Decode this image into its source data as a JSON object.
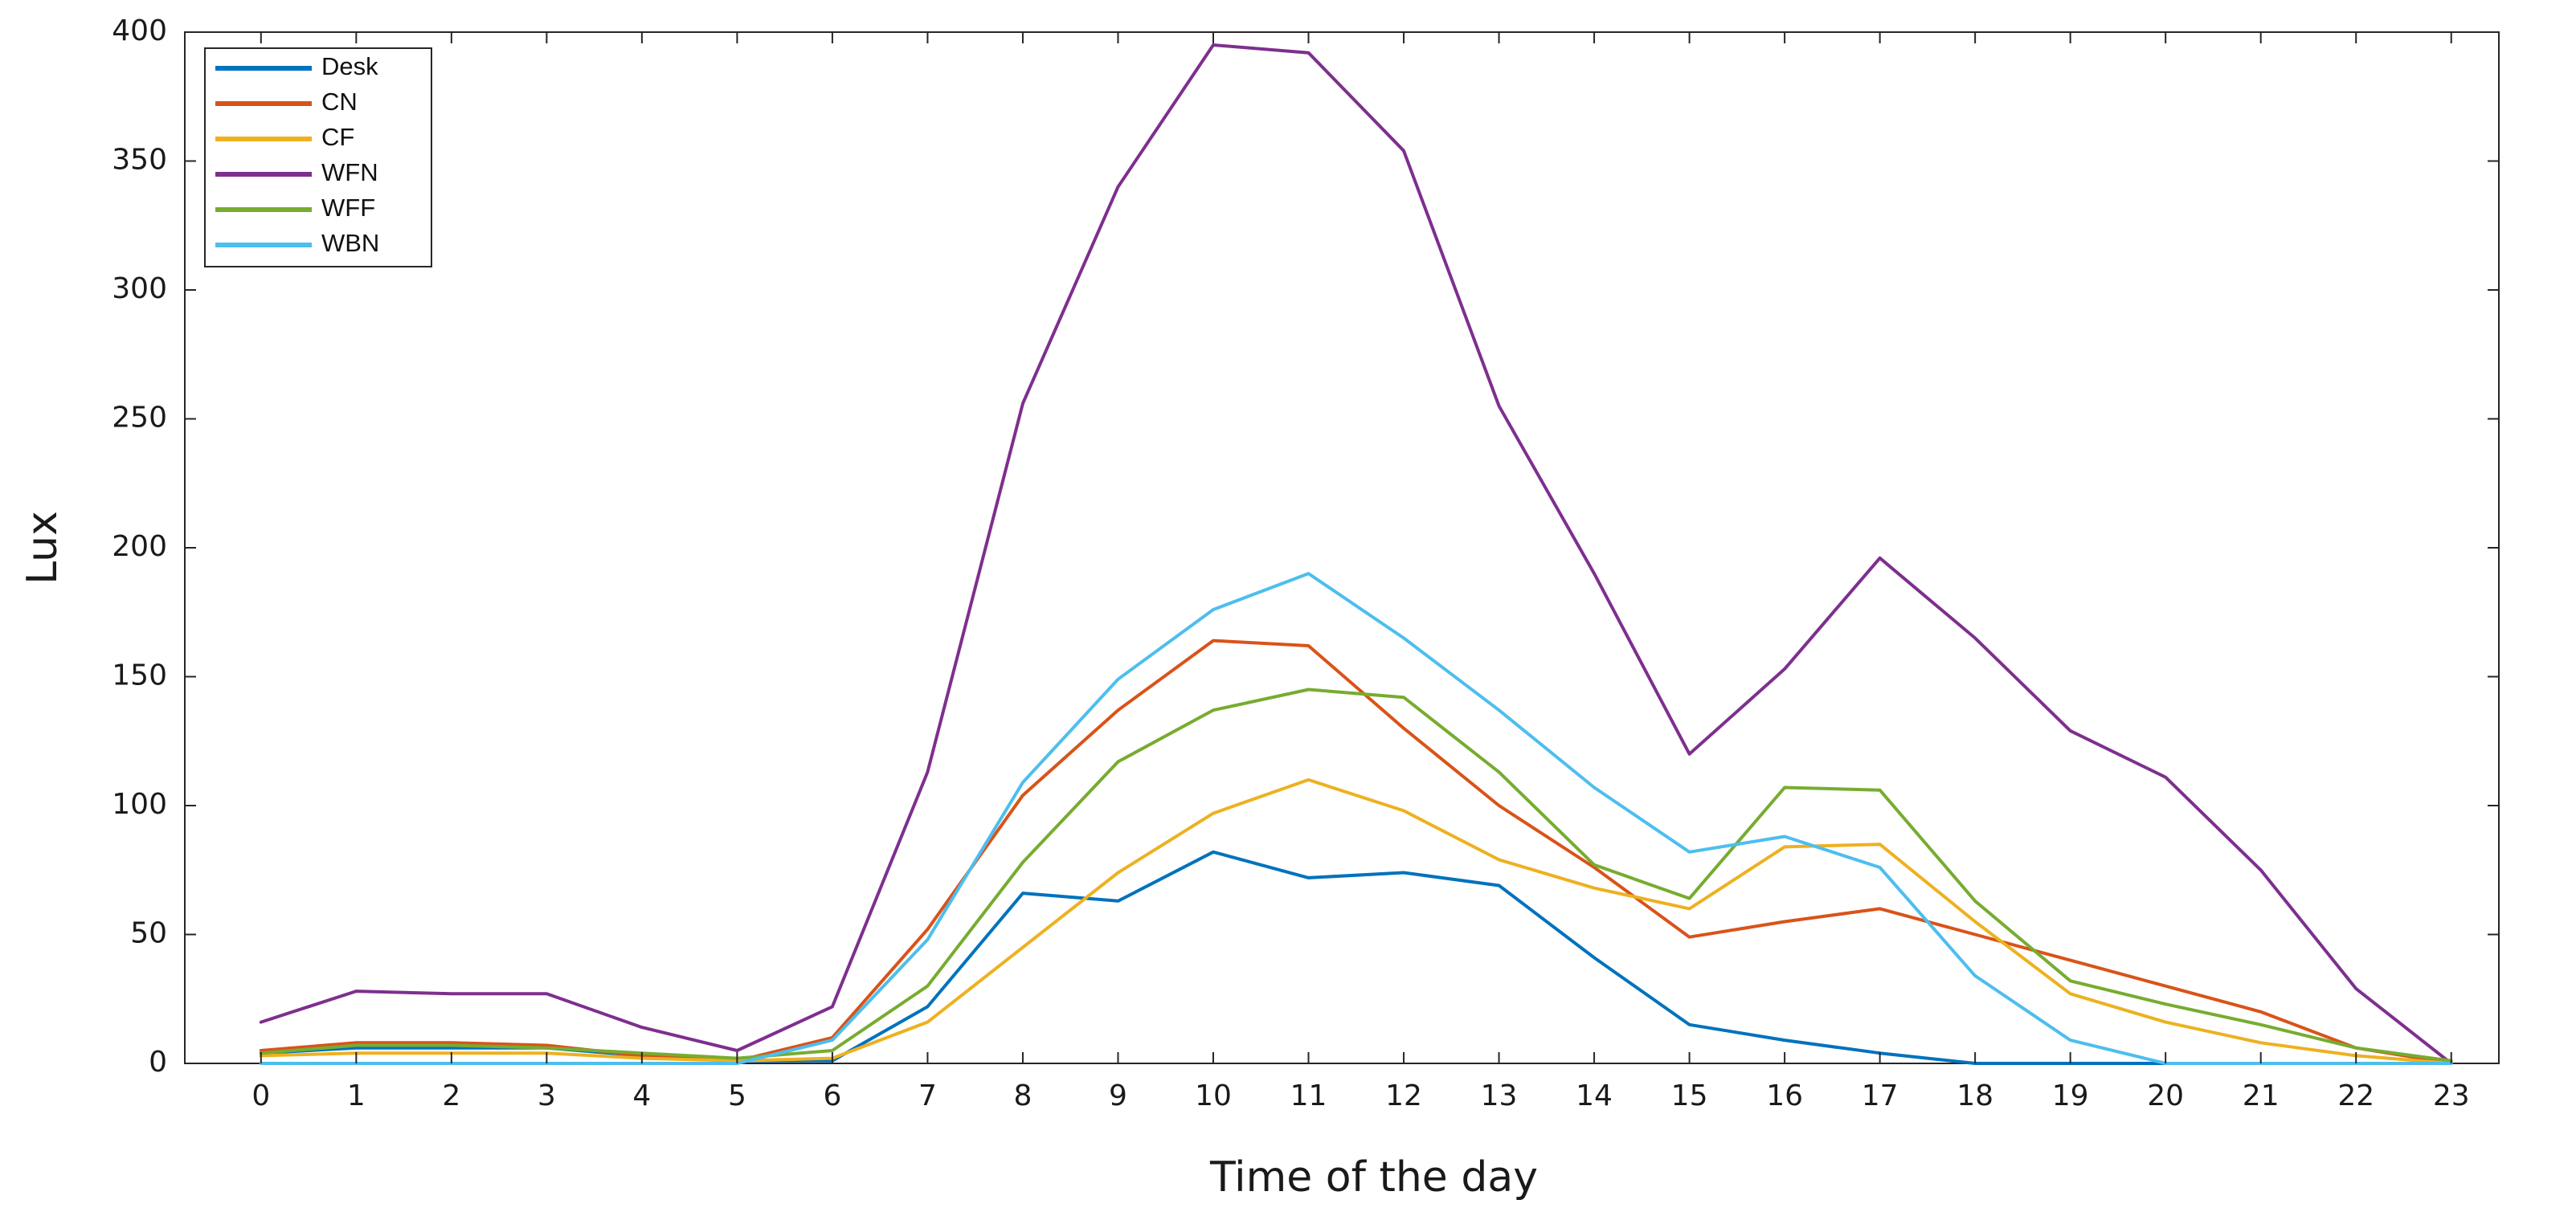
{
  "chart_data": {
    "type": "line",
    "title": "",
    "xlabel": "Time of the day",
    "ylabel": "Lux",
    "x": [
      0,
      1,
      2,
      3,
      4,
      5,
      6,
      7,
      8,
      9,
      10,
      11,
      12,
      13,
      14,
      15,
      16,
      17,
      18,
      19,
      20,
      21,
      22,
      23
    ],
    "xlim": [
      -0.8,
      23.5
    ],
    "ylim": [
      0,
      400
    ],
    "yticks": [
      0,
      50,
      100,
      150,
      200,
      250,
      300,
      350,
      400
    ],
    "grid": false,
    "legend_position": "top-left",
    "series": [
      {
        "name": "Desk",
        "color": "#0072BD",
        "values": [
          4,
          6,
          6,
          6,
          3,
          1,
          1,
          22,
          66,
          63,
          82,
          72,
          74,
          69,
          41,
          15,
          9,
          4,
          0,
          0,
          0,
          0,
          0,
          0
        ]
      },
      {
        "name": "CN",
        "color": "#D95319",
        "values": [
          5,
          8,
          8,
          7,
          3,
          1,
          10,
          52,
          104,
          137,
          164,
          162,
          130,
          100,
          76,
          49,
          55,
          60,
          50,
          40,
          30,
          20,
          6,
          0
        ]
      },
      {
        "name": "CF",
        "color": "#EDB120",
        "values": [
          3,
          4,
          4,
          4,
          2,
          1,
          2,
          16,
          45,
          74,
          97,
          110,
          98,
          79,
          68,
          60,
          84,
          85,
          55,
          27,
          16,
          8,
          3,
          0
        ]
      },
      {
        "name": "WFN",
        "color": "#7E2F8E",
        "values": [
          16,
          28,
          27,
          27,
          14,
          5,
          22,
          113,
          256,
          340,
          395,
          392,
          354,
          255,
          190,
          120,
          153,
          196,
          165,
          129,
          111,
          75,
          29,
          0
        ]
      },
      {
        "name": "WFF",
        "color": "#77AC30",
        "values": [
          4,
          7,
          7,
          6,
          4,
          2,
          5,
          30,
          78,
          117,
          137,
          145,
          142,
          113,
          77,
          64,
          107,
          106,
          63,
          32,
          23,
          15,
          6,
          1
        ]
      },
      {
        "name": "WBN",
        "color": "#4DBEEE",
        "values": [
          0,
          0,
          0,
          0,
          0,
          0,
          9,
          48,
          109,
          149,
          176,
          190,
          165,
          137,
          107,
          82,
          88,
          76,
          34,
          9,
          0,
          0,
          0,
          0
        ]
      }
    ]
  }
}
